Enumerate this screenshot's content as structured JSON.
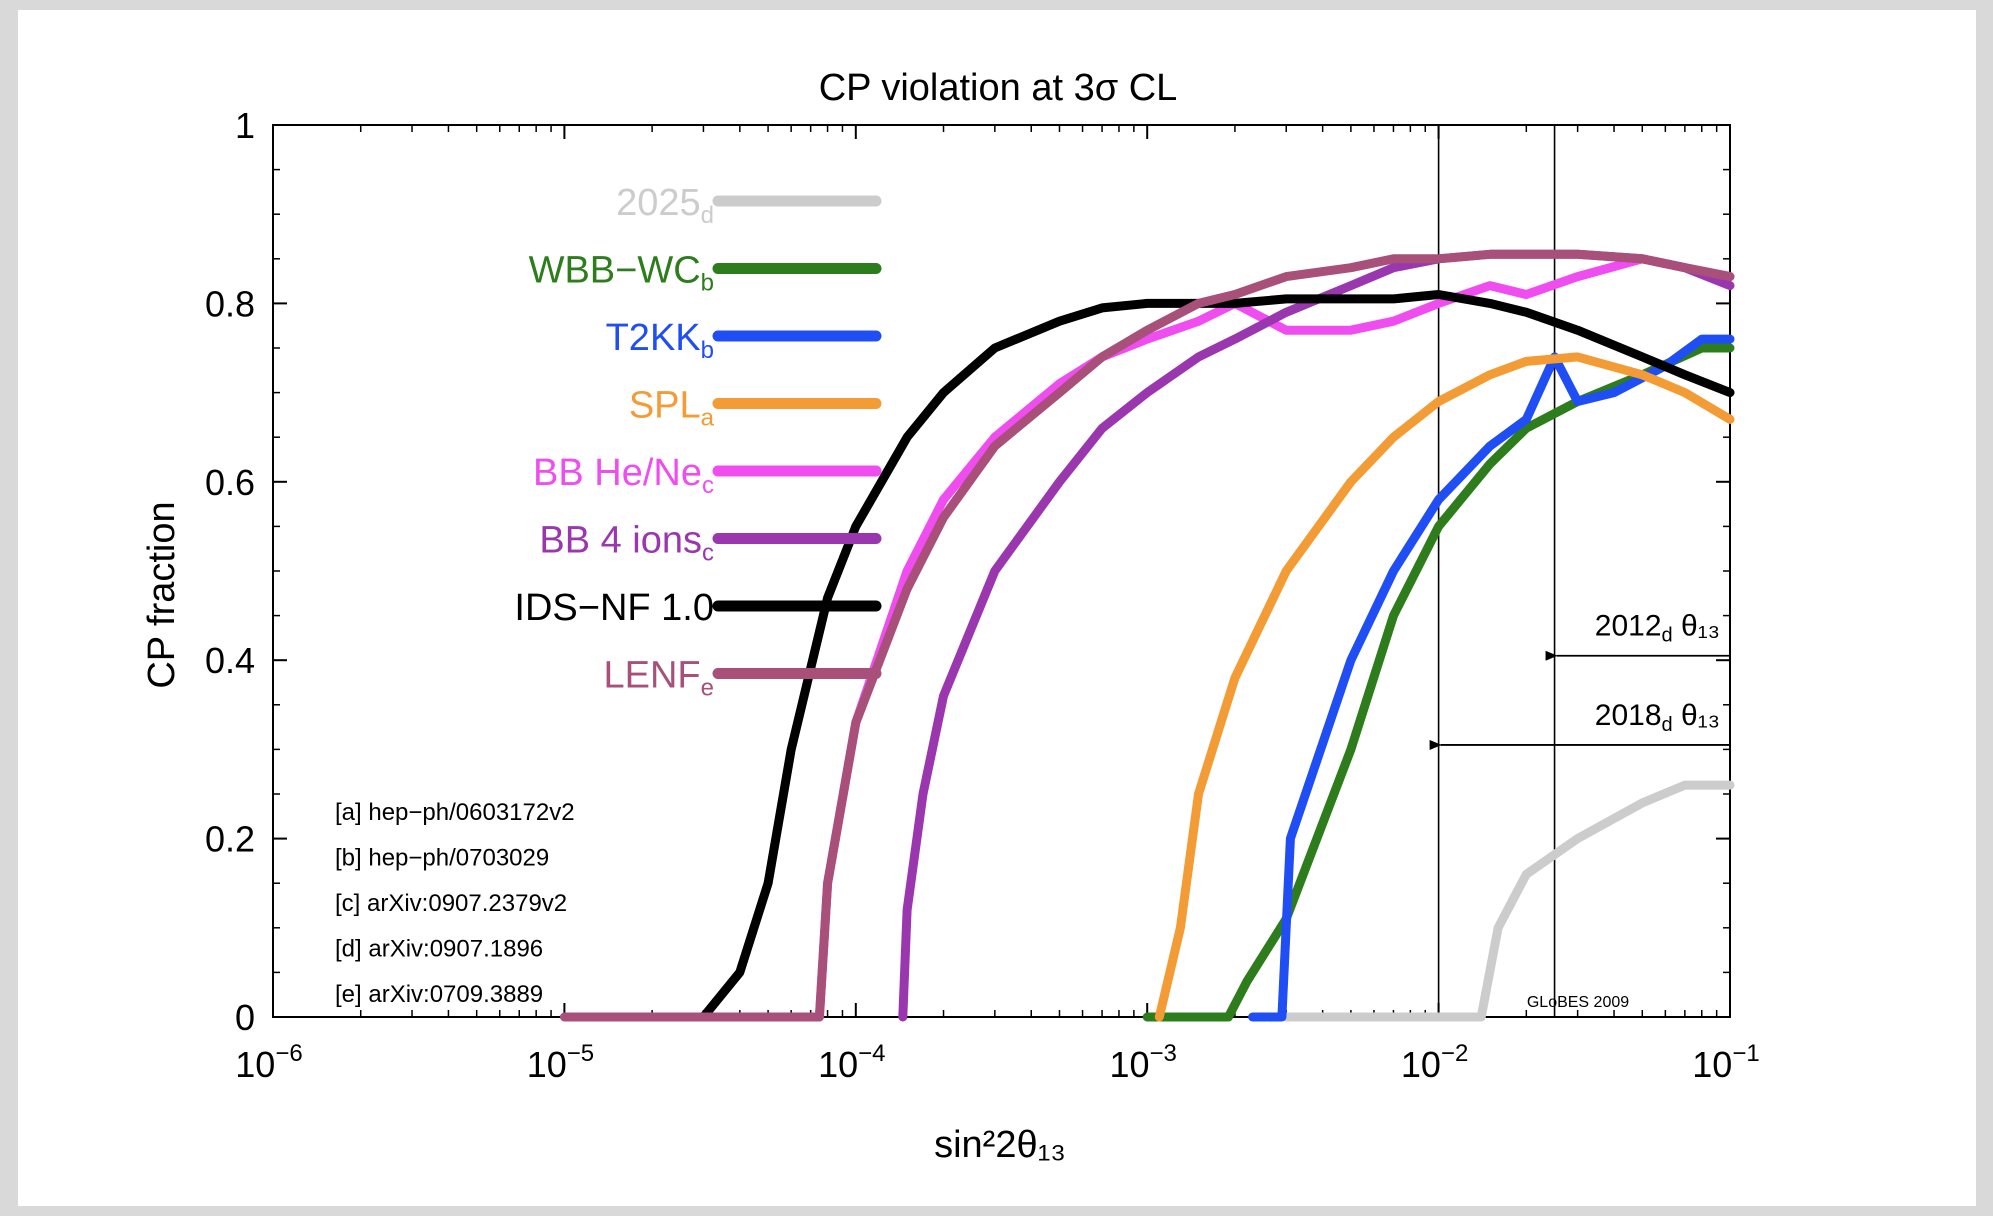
{
  "chart_data": {
    "type": "line",
    "title": "CP violation at 3σ CL",
    "xlabel": "sin²2θ₁₃",
    "ylabel": "CP fraction",
    "x_scale": "log",
    "xlim": [
      1e-06,
      0.1
    ],
    "ylim": [
      0,
      1
    ],
    "x_ticks": [
      {
        "value": 1e-06,
        "base": "10",
        "exp": "−6"
      },
      {
        "value": 1e-05,
        "base": "10",
        "exp": "−5"
      },
      {
        "value": 0.0001,
        "base": "10",
        "exp": "−4"
      },
      {
        "value": 0.001,
        "base": "10",
        "exp": "−3"
      },
      {
        "value": 0.01,
        "base": "10",
        "exp": "−2"
      },
      {
        "value": 0.1,
        "base": "10",
        "exp": "−1"
      }
    ],
    "y_ticks": [
      {
        "value": 0,
        "label": "0"
      },
      {
        "value": 0.2,
        "label": "0.2"
      },
      {
        "value": 0.4,
        "label": "0.4"
      },
      {
        "value": 0.6,
        "label": "0.6"
      },
      {
        "value": 0.8,
        "label": "0.8"
      },
      {
        "value": 1,
        "label": "1"
      }
    ],
    "legend_position": "top-left",
    "series": [
      {
        "name": "2025",
        "sub": "d",
        "color": "#cccccc",
        "x": [
          0.003,
          0.014,
          0.016,
          0.02,
          0.03,
          0.05,
          0.07,
          0.1
        ],
        "y": [
          0,
          0,
          0.1,
          0.16,
          0.2,
          0.24,
          0.26,
          0.26
        ]
      },
      {
        "name": "WBB−WC",
        "sub": "b",
        "color": "#2e7d1c",
        "x": [
          0.001,
          0.0019,
          0.0022,
          0.003,
          0.005,
          0.007,
          0.01,
          0.015,
          0.02,
          0.03,
          0.05,
          0.08,
          0.1
        ],
        "y": [
          0,
          0,
          0.04,
          0.11,
          0.3,
          0.45,
          0.55,
          0.62,
          0.66,
          0.69,
          0.72,
          0.75,
          0.75
        ]
      },
      {
        "name": "T2KK",
        "sub": "b",
        "color": "#1f4ef5",
        "x": [
          0.0023,
          0.0029,
          0.0031,
          0.005,
          0.007,
          0.01,
          0.015,
          0.02,
          0.025,
          0.03,
          0.04,
          0.06,
          0.08,
          0.1
        ],
        "y": [
          0,
          0,
          0.2,
          0.4,
          0.5,
          0.58,
          0.64,
          0.67,
          0.74,
          0.69,
          0.7,
          0.73,
          0.76,
          0.76
        ]
      },
      {
        "name": "SPL",
        "sub": "a",
        "color": "#f39c36",
        "x": [
          0.0011,
          0.0013,
          0.0015,
          0.002,
          0.003,
          0.005,
          0.007,
          0.01,
          0.015,
          0.02,
          0.03,
          0.05,
          0.07,
          0.1
        ],
        "y": [
          0,
          0.1,
          0.25,
          0.38,
          0.5,
          0.6,
          0.65,
          0.69,
          0.72,
          0.735,
          0.74,
          0.72,
          0.7,
          0.67
        ]
      },
      {
        "name": "BB He/Ne",
        "sub": "c",
        "color": "#f04df0",
        "x": [
          7.5e-05,
          8e-05,
          0.0001,
          0.00015,
          0.0002,
          0.0003,
          0.0005,
          0.0007,
          0.001,
          0.0015,
          0.002,
          0.003,
          0.005,
          0.007,
          0.01,
          0.015,
          0.02,
          0.03,
          0.05,
          0.07,
          0.1
        ],
        "y": [
          0,
          0.15,
          0.33,
          0.5,
          0.58,
          0.65,
          0.71,
          0.74,
          0.76,
          0.78,
          0.8,
          0.77,
          0.77,
          0.78,
          0.8,
          0.82,
          0.81,
          0.83,
          0.85,
          0.84,
          0.83
        ]
      },
      {
        "name": "BB 4 ions",
        "sub": "c",
        "color": "#9b37ae",
        "x": [
          0.000145,
          0.00015,
          0.00017,
          0.0002,
          0.0003,
          0.0005,
          0.0007,
          0.001,
          0.0015,
          0.002,
          0.003,
          0.005,
          0.007,
          0.01,
          0.015,
          0.02,
          0.03,
          0.05,
          0.07,
          0.1
        ],
        "y": [
          0,
          0.12,
          0.25,
          0.36,
          0.5,
          0.6,
          0.66,
          0.7,
          0.74,
          0.76,
          0.79,
          0.82,
          0.84,
          0.85,
          0.855,
          0.855,
          0.855,
          0.85,
          0.84,
          0.82
        ]
      },
      {
        "name": "IDS−NF 1.0",
        "sub": "",
        "color": "#000000",
        "x": [
          3e-05,
          4e-05,
          5e-05,
          6e-05,
          8e-05,
          0.0001,
          0.00015,
          0.0002,
          0.0003,
          0.0005,
          0.0007,
          0.001,
          0.0015,
          0.002,
          0.003,
          0.005,
          0.007,
          0.01,
          0.015,
          0.02,
          0.03,
          0.05,
          0.07,
          0.1
        ],
        "y": [
          0,
          0.05,
          0.15,
          0.3,
          0.47,
          0.55,
          0.65,
          0.7,
          0.75,
          0.78,
          0.795,
          0.8,
          0.8,
          0.8,
          0.805,
          0.805,
          0.805,
          0.81,
          0.8,
          0.79,
          0.77,
          0.74,
          0.72,
          0.7
        ]
      },
      {
        "name": "LENF",
        "sub": "e",
        "color": "#a8507a",
        "x": [
          1e-05,
          7.5e-05,
          8e-05,
          0.0001,
          0.00015,
          0.0002,
          0.0003,
          0.0005,
          0.0007,
          0.001,
          0.0015,
          0.002,
          0.003,
          0.005,
          0.007,
          0.01,
          0.015,
          0.02,
          0.03,
          0.05,
          0.07,
          0.1
        ],
        "y": [
          0,
          0,
          0.15,
          0.33,
          0.48,
          0.56,
          0.64,
          0.7,
          0.74,
          0.77,
          0.8,
          0.81,
          0.83,
          0.84,
          0.85,
          0.85,
          0.855,
          0.855,
          0.855,
          0.85,
          0.84,
          0.83
        ]
      }
    ],
    "vertical_markers": [
      {
        "x": 0.01,
        "label": "2018",
        "sub": "d",
        "tail": "θ₁₃",
        "y_arrow": 0.305
      },
      {
        "x": 0.025,
        "label": "2012",
        "sub": "d",
        "tail": "θ₁₃",
        "y_arrow": 0.405
      }
    ],
    "references": [
      "[a] hep−ph/0603172v2",
      "[b] hep−ph/0703029",
      "[c] arXiv:0907.2379v2",
      "[d] arXiv:0907.1896",
      "[e] arXiv:0709.3889"
    ],
    "watermark": "GLoBES 2009"
  }
}
